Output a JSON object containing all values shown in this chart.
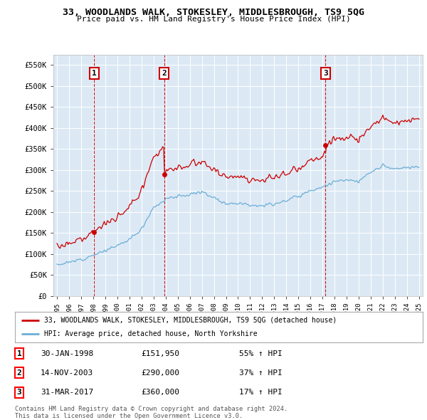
{
  "title": "33, WOODLANDS WALK, STOKESLEY, MIDDLESBROUGH, TS9 5QG",
  "subtitle": "Price paid vs. HM Land Registry's House Price Index (HPI)",
  "background_color": "#ffffff",
  "plot_bg_color": "#dce9f5",
  "grid_color": "#ffffff",
  "sale_dates_float": [
    1998.083,
    2003.875,
    2017.25
  ],
  "sale_prices": [
    151950,
    290000,
    360000
  ],
  "sale_labels": [
    "1",
    "2",
    "3"
  ],
  "sale_pct": [
    "55% ↑ HPI",
    "37% ↑ HPI",
    "17% ↑ HPI"
  ],
  "sale_date_labels": [
    "30-JAN-1998",
    "14-NOV-2003",
    "31-MAR-2017"
  ],
  "sale_price_labels": [
    "£151,950",
    "£290,000",
    "£360,000"
  ],
  "hpi_line_color": "#6baed6",
  "price_line_color": "#cc0000",
  "dashed_line_color": "#cc0000",
  "legend_label_red": "33, WOODLANDS WALK, STOKESLEY, MIDDLESBROUGH, TS9 5QG (detached house)",
  "legend_label_blue": "HPI: Average price, detached house, North Yorkshire",
  "footer1": "Contains HM Land Registry data © Crown copyright and database right 2024.",
  "footer2": "This data is licensed under the Open Government Licence v3.0.",
  "ylim": [
    0,
    575000
  ],
  "yticks": [
    0,
    50000,
    100000,
    150000,
    200000,
    250000,
    300000,
    350000,
    400000,
    450000,
    500000,
    550000
  ],
  "ytick_labels": [
    "£0",
    "£50K",
    "£100K",
    "£150K",
    "£200K",
    "£250K",
    "£300K",
    "£350K",
    "£400K",
    "£450K",
    "£500K",
    "£550K"
  ],
  "xlim_left": 1994.7,
  "xlim_right": 2025.3,
  "xtick_years": [
    1995,
    1996,
    1997,
    1998,
    1999,
    2000,
    2001,
    2002,
    2003,
    2004,
    2005,
    2006,
    2007,
    2008,
    2009,
    2010,
    2011,
    2012,
    2013,
    2014,
    2015,
    2016,
    2017,
    2018,
    2019,
    2020,
    2021,
    2022,
    2023,
    2024,
    2025
  ]
}
